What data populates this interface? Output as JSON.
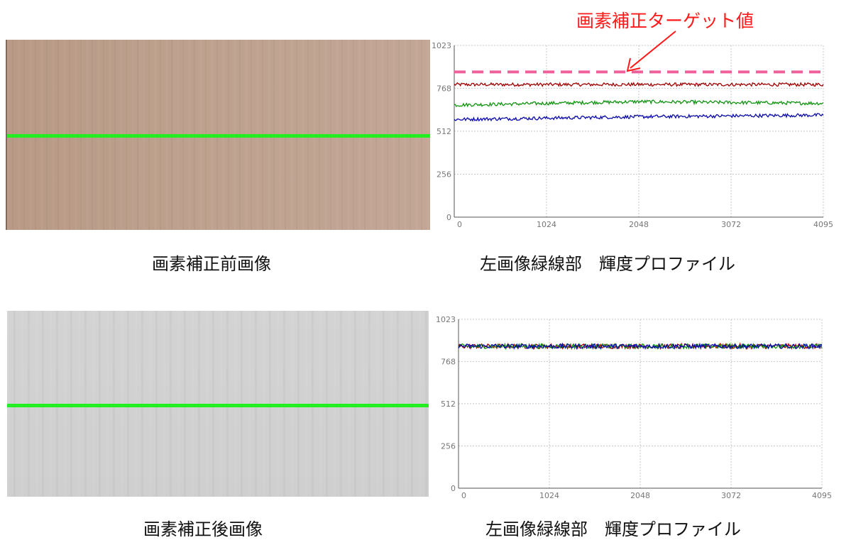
{
  "captions": {
    "before_image": "画素補正前画像",
    "before_profile": "左画像緑線部　輝度プロファイル",
    "after_image": "画素補正後画像",
    "after_profile": "左画像緑線部　輝度プロファイル"
  },
  "annotation": {
    "target_label": "画素補正ターゲット値",
    "color": "#ff1a1a"
  },
  "colors": {
    "green_line": "#22ee22",
    "target_dash": "#f0609a",
    "red": "#a00000",
    "green": "#109410",
    "blue": "#0a0aa8"
  },
  "chart_data": [
    {
      "type": "line",
      "ylim": [
        0,
        1023
      ],
      "xlim": [
        0,
        4095
      ],
      "yticks": [
        0,
        256,
        512,
        768,
        1023
      ],
      "xticks": [
        0,
        1024,
        2048,
        3072,
        4095
      ],
      "grid": true,
      "target_value": 865,
      "series": [
        {
          "color": "#a00000",
          "start": 790,
          "end": 790,
          "noise": 10
        },
        {
          "color": "#109410",
          "start": 668,
          "mid": 688,
          "end": 678,
          "noise": 10
        },
        {
          "color": "#0a0aa8",
          "start": 582,
          "mid": 598,
          "end": 608,
          "noise": 10
        }
      ]
    },
    {
      "type": "line",
      "ylim": [
        0,
        1023
      ],
      "xlim": [
        0,
        4095
      ],
      "yticks": [
        0,
        256,
        512,
        768,
        1023
      ],
      "xticks": [
        0,
        1024,
        2048,
        3072,
        4095
      ],
      "grid": true,
      "series": [
        {
          "color": "#a00000",
          "start": 860,
          "end": 860,
          "noise": 14
        },
        {
          "color": "#109410",
          "start": 860,
          "end": 860,
          "noise": 14
        },
        {
          "color": "#0a0aa8",
          "start": 860,
          "end": 860,
          "noise": 14
        }
      ]
    }
  ]
}
